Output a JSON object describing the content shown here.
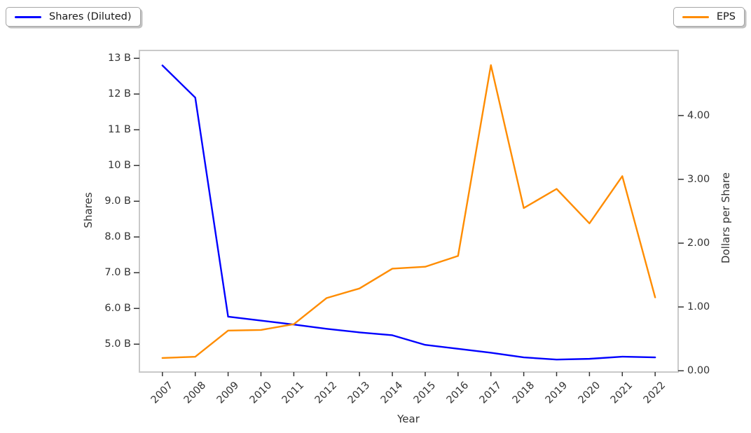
{
  "legend_left": {
    "label": "Shares (Diluted)"
  },
  "legend_right": {
    "label": "EPS"
  },
  "chart_data": {
    "type": "line",
    "title": "",
    "xlabel": "Year",
    "ylabel_left": "Shares",
    "ylabel_right": "Dollars per Share",
    "x": [
      2007,
      2008,
      2009,
      2010,
      2011,
      2012,
      2013,
      2014,
      2015,
      2016,
      2017,
      2018,
      2019,
      2020,
      2021,
      2022
    ],
    "series": [
      {
        "name": "Shares (Diluted)",
        "yaxis": "left",
        "color": "#0000ff",
        "unit": "B shares",
        "values": [
          12.8,
          11.9,
          5.77,
          5.66,
          5.55,
          5.43,
          5.33,
          5.25,
          4.98,
          4.87,
          4.76,
          4.63,
          4.57,
          4.59,
          4.65,
          4.63
        ]
      },
      {
        "name": "EPS",
        "yaxis": "right",
        "color": "#ff8c00",
        "unit": "dollars per share",
        "values": [
          0.2,
          0.22,
          0.63,
          0.64,
          0.73,
          1.14,
          1.29,
          1.6,
          1.63,
          1.8,
          4.79,
          2.55,
          2.85,
          2.31,
          3.05,
          1.15
        ]
      }
    ],
    "left_axis": {
      "range": [
        4.22,
        13.22
      ],
      "ticks": [
        {
          "value": 13,
          "label": "13 B"
        },
        {
          "value": 12,
          "label": "12 B"
        },
        {
          "value": 11,
          "label": "11 B"
        },
        {
          "value": 10,
          "label": "10 B"
        },
        {
          "value": 9,
          "label": "9.0 B"
        },
        {
          "value": 8,
          "label": "8.0 B"
        },
        {
          "value": 7,
          "label": "7.0 B"
        },
        {
          "value": 6,
          "label": "6.0 B"
        },
        {
          "value": 5,
          "label": "5.0 B"
        }
      ]
    },
    "right_axis": {
      "range": [
        -0.02,
        5.02
      ],
      "ticks": [
        {
          "value": 0,
          "label": "0.00"
        },
        {
          "value": 1,
          "label": "1.00"
        },
        {
          "value": 2,
          "label": "2.00"
        },
        {
          "value": 3,
          "label": "3.00"
        },
        {
          "value": 4,
          "label": "4.00"
        }
      ]
    },
    "x_range": [
      2006.3,
      2022.7
    ],
    "grid": false,
    "legend_position": "outside upper-left and outside upper-right",
    "frame_color": "#c9c9c9",
    "tick_color": "#333333",
    "text_color": "#333333"
  }
}
